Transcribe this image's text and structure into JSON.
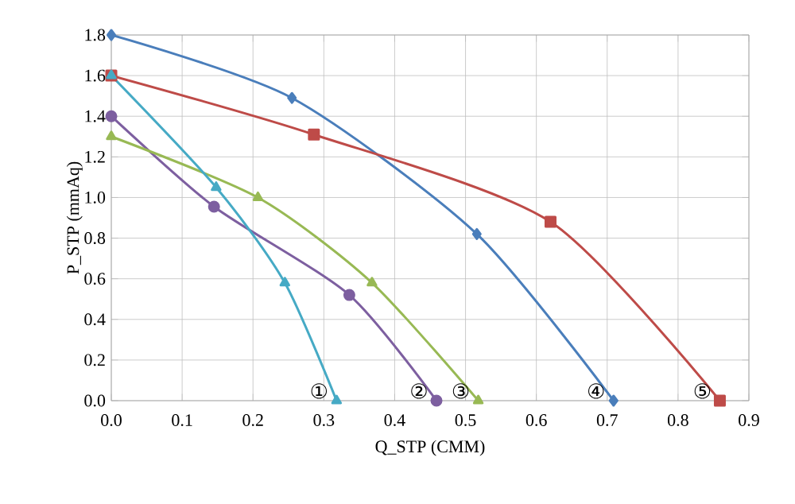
{
  "chart_data": {
    "type": "line",
    "xlabel": "Q_STP (CMM)",
    "ylabel": "P_STP (mmAq)",
    "xlim": [
      0,
      0.9
    ],
    "ylim": [
      0,
      1.8
    ],
    "xticks": [
      {
        "value": 0,
        "label": "0.0"
      },
      0.1,
      0.2,
      0.3,
      0.4,
      0.5,
      0.6,
      0.7,
      0.8,
      0.9
    ],
    "yticks": [
      {
        "value": 0,
        "label": "0.0"
      },
      0.2,
      0.4,
      0.6,
      0.8,
      {
        "value": 1,
        "label": "1.0"
      },
      1.2,
      1.4,
      1.6,
      1.8
    ],
    "grid": true,
    "line_style": "solid",
    "series": [
      {
        "name": "④",
        "color": "#4a7ebb",
        "marker": "diamond",
        "x": [
          0,
          0.255,
          0.516,
          0.709
        ],
        "values": [
          1.8,
          1.49,
          0.82,
          0
        ]
      },
      {
        "name": "⑤",
        "color": "#be4b48",
        "marker": "square",
        "x": [
          0,
          0.286,
          0.62,
          0.859
        ],
        "values": [
          1.6,
          1.31,
          0.88,
          0
        ]
      },
      {
        "name": "②",
        "color": "#7d5fa0",
        "marker": "circle",
        "x": [
          0,
          0.145,
          0.336,
          0.459
        ],
        "values": [
          1.4,
          0.955,
          0.52,
          0
        ]
      },
      {
        "name": "③",
        "color": "#98b954",
        "marker": "triangle",
        "x": [
          0,
          0.207,
          0.368,
          0.518
        ],
        "values": [
          1.3,
          1.0,
          0.58,
          0
        ]
      },
      {
        "name": "①",
        "color": "#46aac5",
        "marker": "triangle",
        "x": [
          0,
          0.148,
          0.245,
          0.318
        ],
        "values": [
          1.6,
          1.05,
          0.58,
          0
        ]
      }
    ]
  }
}
